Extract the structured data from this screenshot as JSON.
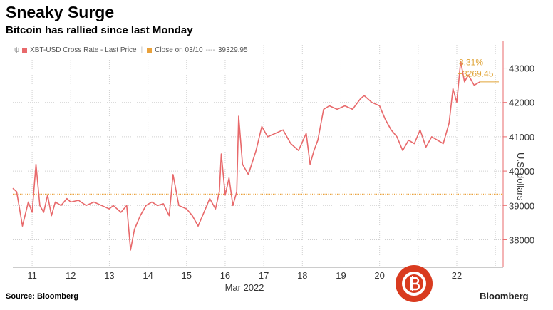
{
  "header": {
    "title": "Sneaky Surge",
    "subtitle": "Bitcoin has rallied since last Monday"
  },
  "legend": {
    "series_label": "XBT-USD Cross Rate - Last Price",
    "close_label": "Close on 03/10",
    "close_dots": "----",
    "close_value": "39329.95"
  },
  "annotation": {
    "percent": "8.31%",
    "change": "+3269.45"
  },
  "footer": {
    "source": "Source: Bloomberg",
    "brand": "Bloomberg"
  },
  "colors": {
    "line": "#e8696b",
    "reference": "#e9a13b",
    "grid": "#cfcfcf",
    "annotation": "#e0a437",
    "watermark": "#d93b1f"
  },
  "chart_data": {
    "type": "line",
    "title": "Sneaky Surge",
    "subtitle": "Bitcoin has rallied since last Monday",
    "xlabel": "Mar 2022",
    "ylabel": "U.S. dollars",
    "x_ticks": [
      "11",
      "12",
      "13",
      "14",
      "15",
      "16",
      "17",
      "18",
      "19",
      "20",
      "21",
      "22"
    ],
    "y_ticks": [
      38000,
      39000,
      40000,
      41000,
      42000,
      43000
    ],
    "ylim": [
      37200,
      43800
    ],
    "xlim": [
      10.5,
      23.2
    ],
    "reference_line": {
      "label": "Close on 03/10",
      "value": 39329.95
    },
    "series": [
      {
        "name": "XBT-USD Cross Rate - Last Price",
        "x": [
          10.5,
          10.6,
          10.75,
          10.9,
          11.0,
          11.1,
          11.2,
          11.3,
          11.4,
          11.5,
          11.6,
          11.75,
          11.9,
          12.0,
          12.2,
          12.4,
          12.6,
          12.8,
          13.0,
          13.1,
          13.3,
          13.45,
          13.55,
          13.65,
          13.8,
          13.95,
          14.1,
          14.25,
          14.4,
          14.55,
          14.65,
          14.8,
          15.0,
          15.15,
          15.3,
          15.45,
          15.6,
          15.75,
          15.85,
          15.9,
          16.0,
          16.1,
          16.2,
          16.3,
          16.35,
          16.45,
          16.6,
          16.8,
          16.95,
          17.1,
          17.3,
          17.5,
          17.7,
          17.9,
          18.1,
          18.2,
          18.3,
          18.4,
          18.55,
          18.7,
          18.9,
          19.1,
          19.3,
          19.5,
          19.6,
          19.8,
          20.0,
          20.15,
          20.3,
          20.45,
          20.6,
          20.75,
          20.9,
          21.05,
          21.2,
          21.35,
          21.5,
          21.65,
          21.8,
          21.9,
          22.0,
          22.1,
          22.2,
          22.3,
          22.45,
          22.6
        ],
        "values": [
          39500,
          39400,
          38400,
          39100,
          38800,
          40200,
          39000,
          38800,
          39300,
          38700,
          39100,
          39000,
          39200,
          39100,
          39150,
          39000,
          39100,
          39000,
          38900,
          39000,
          38800,
          39000,
          37700,
          38300,
          38700,
          39000,
          39100,
          39000,
          39050,
          38700,
          39900,
          39000,
          38900,
          38700,
          38400,
          38800,
          39200,
          38900,
          39400,
          40500,
          39300,
          39800,
          39000,
          39400,
          41600,
          40200,
          39900,
          40600,
          41300,
          41000,
          41100,
          41200,
          40800,
          40600,
          41100,
          40200,
          40600,
          40900,
          41800,
          41900,
          41800,
          41900,
          41800,
          42100,
          42200,
          42000,
          41900,
          41500,
          41200,
          41000,
          40600,
          40900,
          40800,
          41200,
          40700,
          41000,
          40900,
          40800,
          41400,
          42400,
          42000,
          43200,
          42600,
          42800,
          42500,
          42600
        ]
      }
    ]
  }
}
